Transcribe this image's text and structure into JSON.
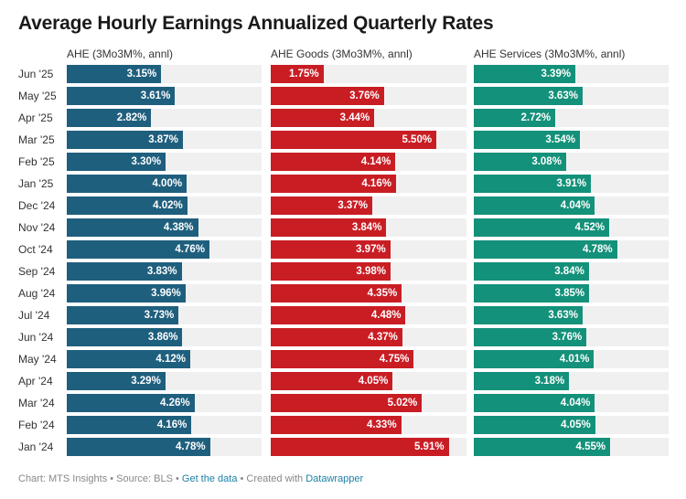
{
  "chart_data": {
    "type": "bar",
    "title": "Average Hourly Earnings Annualized Quarterly Rates",
    "xlabel": "",
    "ylabel": "",
    "categories": [
      "Jun '25",
      "May '25",
      "Apr '25",
      "Mar '25",
      "Feb '25",
      "Jan '25",
      "Dec '24",
      "Nov '24",
      "Oct '24",
      "Sep '24",
      "Aug '24",
      "Jul '24",
      "Jun '24",
      "May '24",
      "Apr '24",
      "Mar '24",
      "Feb '24",
      "Jan '24"
    ],
    "xlim": [
      0,
      6.5
    ],
    "grid": false,
    "series": [
      {
        "name": "AHE (3Mo3M%, annl)",
        "color": "#1f5f7e",
        "values": [
          3.15,
          3.61,
          2.82,
          3.87,
          3.3,
          4.0,
          4.02,
          4.38,
          4.76,
          3.83,
          3.96,
          3.73,
          3.86,
          4.12,
          3.29,
          4.26,
          4.16,
          4.78
        ],
        "labels": [
          "3.15%",
          "3.61%",
          "2.82%",
          "3.87%",
          "3.30%",
          "4.00%",
          "4.02%",
          "4.38%",
          "4.76%",
          "3.83%",
          "3.96%",
          "3.73%",
          "3.86%",
          "4.12%",
          "3.29%",
          "4.26%",
          "4.16%",
          "4.78%"
        ]
      },
      {
        "name": "AHE Goods (3Mo3M%, annl)",
        "color": "#c91d24",
        "values": [
          1.75,
          3.76,
          3.44,
          5.5,
          4.14,
          4.16,
          3.37,
          3.84,
          3.97,
          3.98,
          4.35,
          4.48,
          4.37,
          4.75,
          4.05,
          5.02,
          4.33,
          5.91
        ],
        "labels": [
          "1.75%",
          "3.76%",
          "3.44%",
          "5.50%",
          "4.14%",
          "4.16%",
          "3.37%",
          "3.84%",
          "3.97%",
          "3.98%",
          "4.35%",
          "4.48%",
          "4.37%",
          "4.75%",
          "4.05%",
          "5.02%",
          "4.33%",
          "5.91%"
        ]
      },
      {
        "name": "AHE Services (3Mo3M%, annl)",
        "color": "#14917a",
        "values": [
          3.39,
          3.63,
          2.72,
          3.54,
          3.08,
          3.91,
          4.04,
          4.52,
          4.78,
          3.84,
          3.85,
          3.63,
          3.76,
          4.01,
          3.18,
          4.04,
          4.05,
          4.55
        ],
        "labels": [
          "3.39%",
          "3.63%",
          "2.72%",
          "3.54%",
          "3.08%",
          "3.91%",
          "4.04%",
          "4.52%",
          "4.78%",
          "3.84%",
          "3.85%",
          "3.63%",
          "3.76%",
          "4.01%",
          "3.18%",
          "4.04%",
          "4.05%",
          "4.55%"
        ]
      }
    ]
  },
  "footer": {
    "prefix": "Chart: MTS Insights • Source: BLS • ",
    "get_data": "Get the data",
    "middle": " • Created with ",
    "datawrapper": "Datawrapper"
  }
}
